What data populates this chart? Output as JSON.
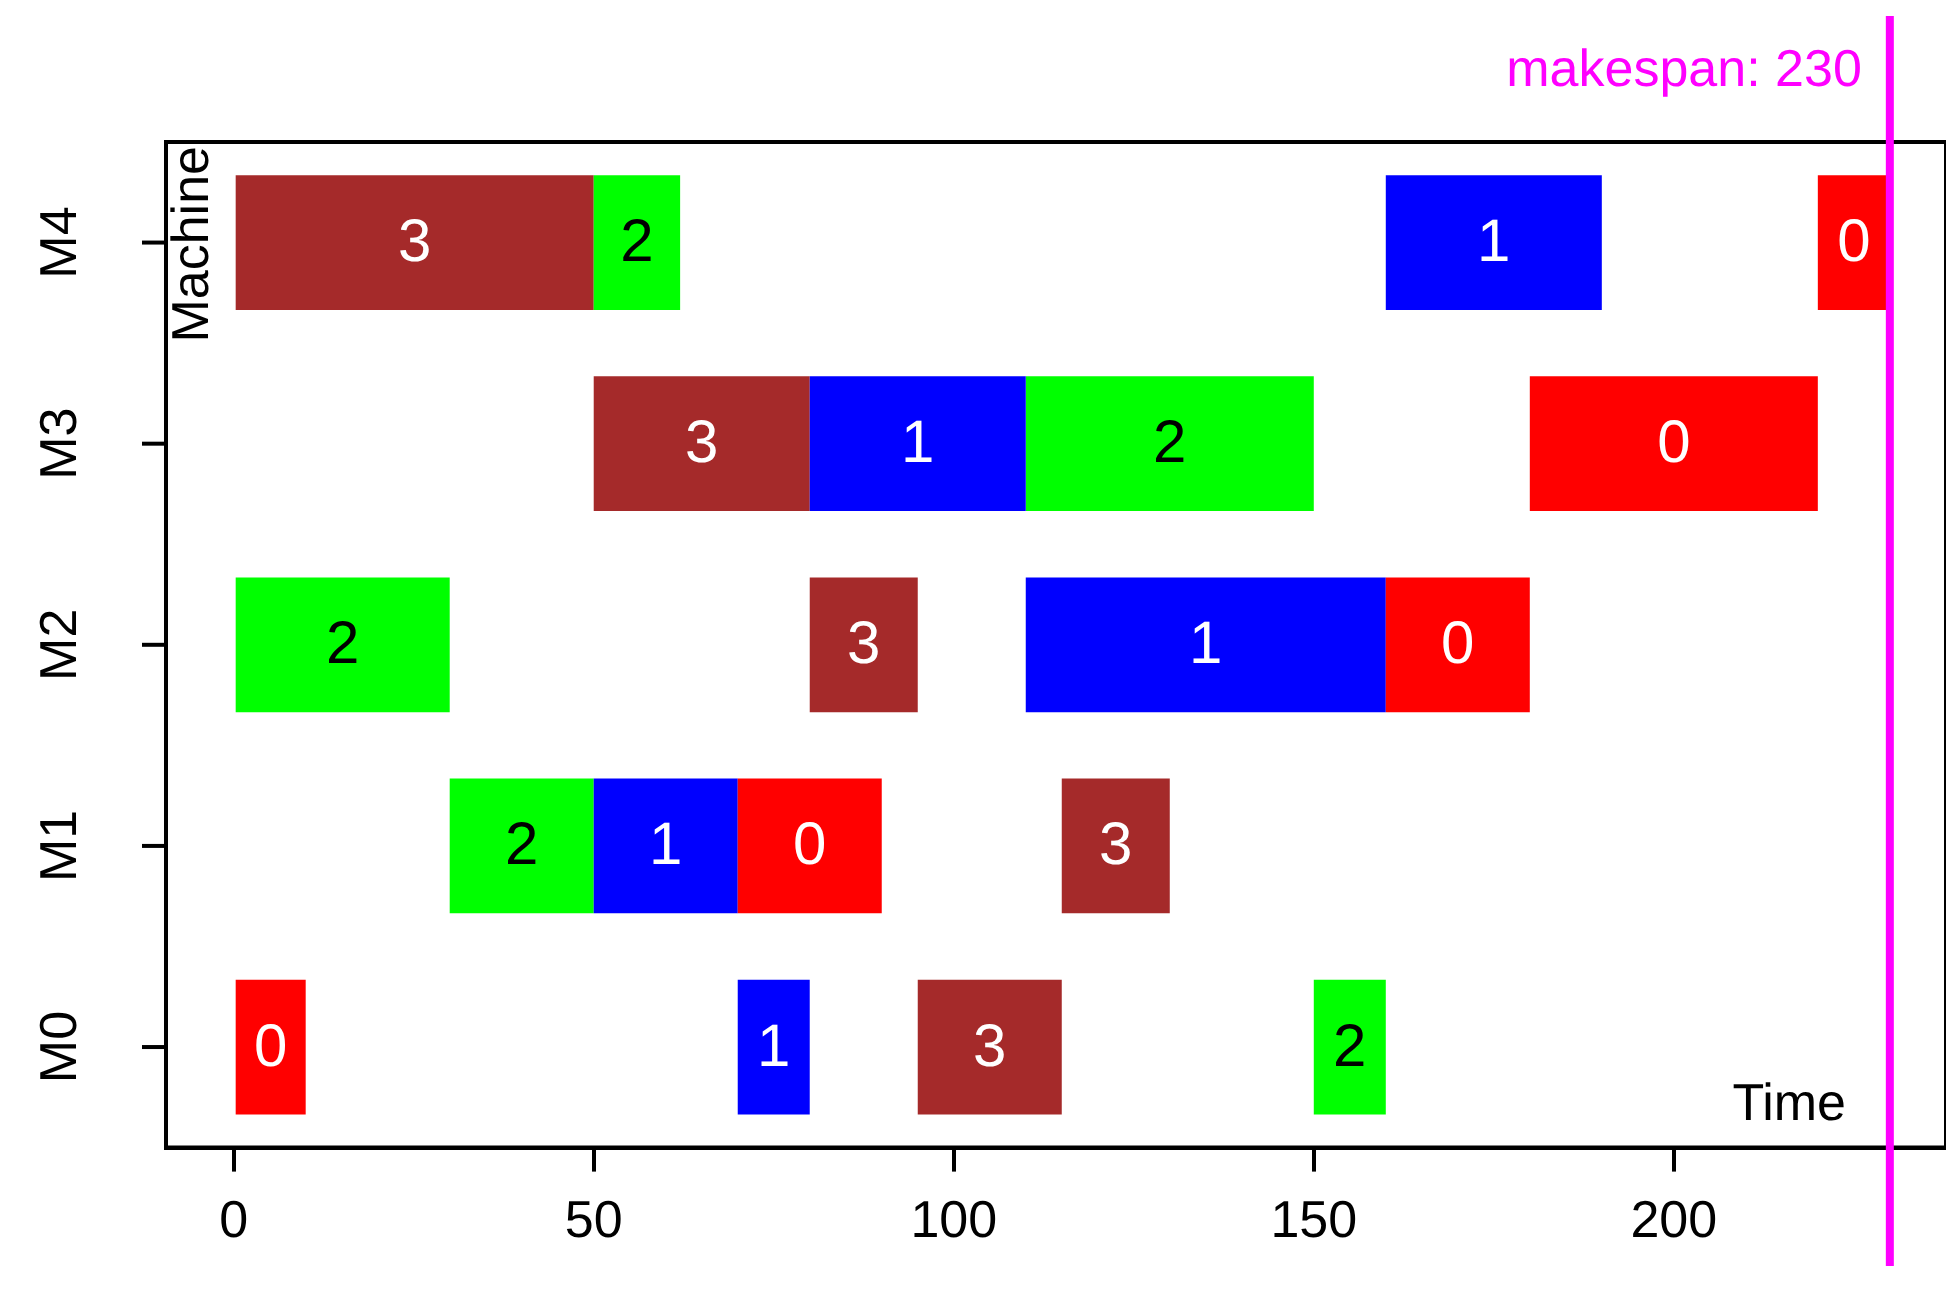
{
  "chart_data": {
    "type": "bar",
    "orientation": "horizontal",
    "xlabel": "Time",
    "ylabel": "Machine",
    "categories": [
      "M4",
      "M3",
      "M2",
      "M1",
      "M0"
    ],
    "series": [
      {
        "name": "0",
        "color": "#ff0000",
        "base": [
          220,
          180,
          160,
          70,
          0
        ],
        "values": [
          10,
          40,
          20,
          20,
          10
        ]
      },
      {
        "name": "1",
        "color": "#0000ff",
        "base": [
          160,
          80,
          110,
          50,
          70
        ],
        "values": [
          30,
          30,
          50,
          20,
          10
        ]
      },
      {
        "name": "2",
        "color": "#00ff00",
        "base": [
          50,
          110,
          0,
          30,
          150
        ],
        "values": [
          12,
          40,
          30,
          20,
          10
        ]
      },
      {
        "name": "3",
        "color": "#a52a2a",
        "base": [
          0,
          50,
          80,
          115,
          95
        ],
        "values": [
          50,
          30,
          15,
          15,
          20
        ]
      }
    ],
    "xlim": [
      -9.4,
      237.8
    ],
    "xticks": [
      0,
      50,
      100,
      150,
      200
    ],
    "ref_lines": [
      {
        "axis": "x",
        "value": 230,
        "label": "makespan: 230",
        "color": "#ff00ff"
      }
    ],
    "grid": false,
    "legend": false
  }
}
